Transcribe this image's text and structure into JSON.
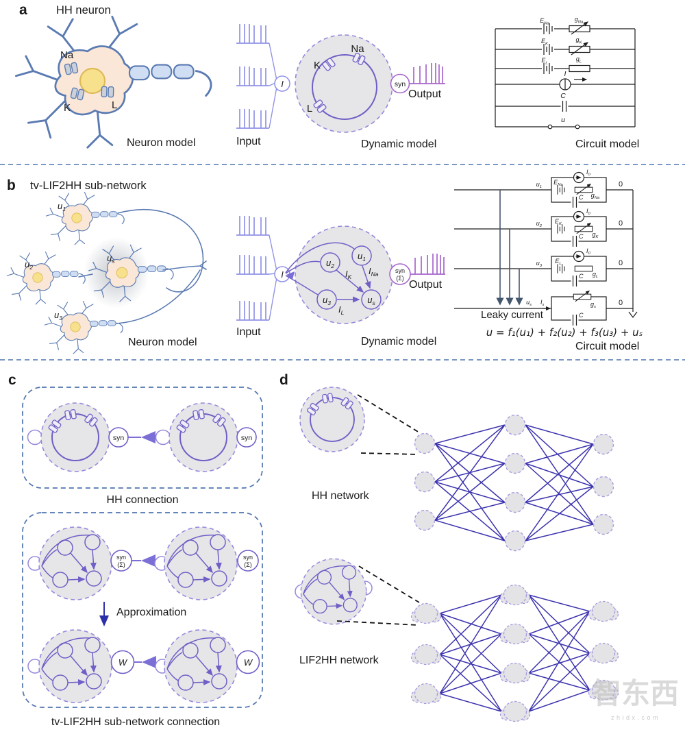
{
  "a": {
    "panel": "a",
    "title": "HH neuron",
    "na": "Na",
    "k": "K",
    "l": "L",
    "neuron_caption": "Neuron model",
    "input": "Input",
    "i": "I",
    "syn": "syn",
    "output": "Output",
    "dyn_caption": "Dynamic model",
    "circ": {
      "rows": [
        [
          "E",
          "Na",
          "g",
          "Na"
        ],
        [
          "E",
          "K",
          "g",
          "K"
        ],
        [
          "E",
          "L",
          "g",
          "L"
        ]
      ],
      "i": "I",
      "c": "C",
      "u": "u"
    },
    "circ_caption": "Circuit model"
  },
  "b": {
    "panel": "b",
    "title": "tv-LIF2HH sub-network",
    "u1b": "u",
    "u1s": "1",
    "u2b": "u",
    "u2s": "2",
    "u3b": "u",
    "u3s": "3",
    "usb": "u",
    "uss": "s",
    "neuron_caption": "Neuron model",
    "input": "Input",
    "i": "I",
    "ikb": "I",
    "iks": "K",
    "inab": "I",
    "inas": "Na",
    "ilb": "I",
    "ils": "L",
    "syn": "syn",
    "sigma": "(Σ)",
    "output": "Output",
    "dyn_caption": "Dynamic model",
    "circ": {
      "i0b": "I",
      "i0s": "0",
      "rows": [
        [
          "E",
          "Na",
          "g",
          "Na"
        ],
        [
          "E",
          "K",
          "g",
          "K"
        ],
        [
          "E",
          "L",
          "g",
          "L"
        ]
      ],
      "gsb": "g",
      "gss": "s",
      "isb": "I",
      "iss": "s",
      "c": "C",
      "zero": "0",
      "leaky": "Leaky current",
      "eq": "u = f₁(u₁) + f₂(u₂) + f₃(u₃) + uₛ"
    },
    "circ_caption": "Circuit model"
  },
  "c": {
    "panel": "c",
    "syn": "syn",
    "sigma": "(Σ)",
    "w": "W",
    "hh_caption": "HH connection",
    "approx": "Approximation",
    "lif_caption": "tv-LIF2HH sub-network connection"
  },
  "d": {
    "panel": "d",
    "hh_caption": "HH network",
    "lif_caption": "LIF2HH network"
  },
  "wm": {
    "text": "智东西",
    "site": "zhidx.com"
  },
  "colors": {
    "membrane_purple": "#6f5fc6",
    "dashed_purple": "#9589dc",
    "cell_fill": "#e6e5e8",
    "input_spike": "#9193e6",
    "output_spike": "#a765cc",
    "network_edge": "#3c33ae",
    "separator_blue": "#4f74ad",
    "neuron_outline": "#5a7ab2",
    "soma_fill": "#fbe7d7",
    "nucleus_fill": "#f8e18c",
    "myelin_fill": "#cfdef2"
  }
}
